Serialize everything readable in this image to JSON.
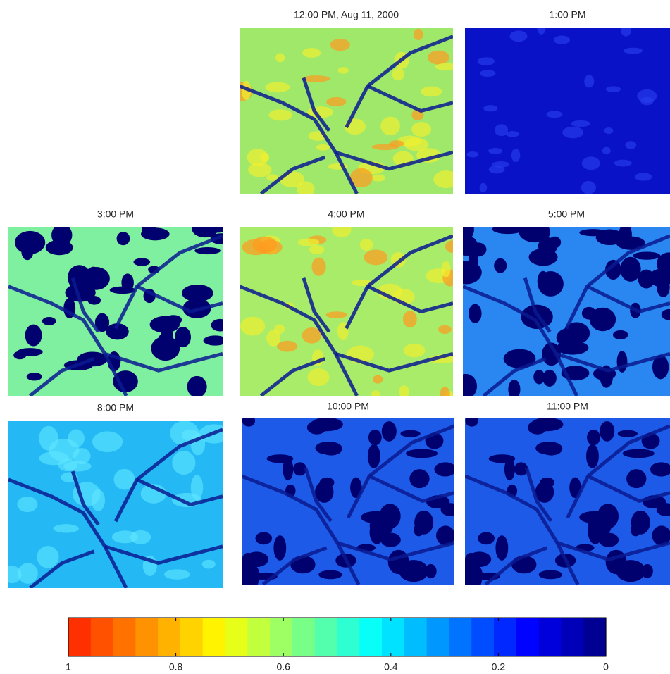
{
  "chart_data": {
    "type": "heatmap-grid",
    "panels": [
      {
        "title": "12:00 PM, Aug 11, 2000",
        "color": "#9fe86a"
      },
      {
        "title": "1:00 PM",
        "color": "#0a12c8"
      },
      {
        "title": "3:00 PM",
        "color": "#7ff0a0"
      },
      {
        "title": "4:00 PM",
        "color": "#a8ec6a"
      },
      {
        "title": "5:00 PM",
        "color": "#2a86f0"
      },
      {
        "title": "8:00 PM",
        "color": "#24b8f4"
      },
      {
        "title": "10:00 PM",
        "color": "#1e5ae8"
      },
      {
        "title": "11:00 PM",
        "color": "#1e5ae8"
      }
    ],
    "colorbar": {
      "xlim": [
        1,
        0
      ],
      "xticks": [
        1,
        0.8,
        0.6,
        0.4,
        0.2,
        0
      ],
      "colors": [
        "#ff2000",
        "#ff9000",
        "#ffff00",
        "#80ff80",
        "#00ffff",
        "#0080ff",
        "#0000ff",
        "#000080"
      ]
    }
  }
}
